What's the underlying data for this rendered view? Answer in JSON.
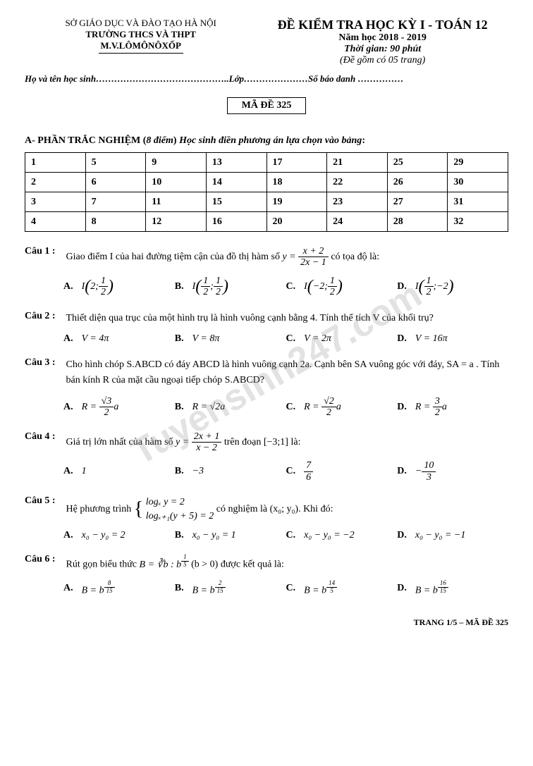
{
  "header": {
    "dept": "SỞ GIÁO DỤC VÀ ĐÀO TẠO HÀ NỘI",
    "school1": "TRƯỜNG THCS VÀ THPT",
    "school2": "M.V.LÔMÔNÔXỐP",
    "examTitle": "ĐỀ KIỂM TRA HỌC KỲ I - TOÁN 12",
    "year": "Năm học 2018 - 2019",
    "time": "Thời gian: 90 phút",
    "pages": "(Đề gồm có 05 trang)"
  },
  "studentLine": "Họ và tên học sinh……………………………………..Lớp…………………Số báo danh ……………",
  "codeLabel": "MÃ ĐỀ 325",
  "sectionA": {
    "prefix": "A-  PHẦN TRẮC NGHIỆM (",
    "italic1": "8 điểm",
    "mid": ")  ",
    "italic2": "Học sinh điền phương án lựa chọn vào bảng",
    "suffix": ":"
  },
  "table": [
    [
      "1",
      "5",
      "9",
      "13",
      "17",
      "21",
      "25",
      "29"
    ],
    [
      "2",
      "6",
      "10",
      "14",
      "18",
      "22",
      "26",
      "30"
    ],
    [
      "3",
      "7",
      "11",
      "15",
      "19",
      "23",
      "27",
      "31"
    ],
    [
      "4",
      "8",
      "12",
      "16",
      "20",
      "24",
      "28",
      "32"
    ]
  ],
  "q1": {
    "label": "Câu 1 :",
    "text": "Giao điểm I của hai đường tiệm cận của đồ thị hàm số  ",
    "text2": "  có tọa độ là:",
    "yNum": "x + 2",
    "yDen": "2x − 1",
    "optA_a": "2",
    "optA_b": "1",
    "optA_c": "2",
    "optB_a": "1",
    "optB_b": "2",
    "optB_c": "1",
    "optB_d": "2",
    "optC_a": "−2",
    "optC_b": "1",
    "optC_c": "2",
    "optD_a": "1",
    "optD_b": "2",
    "optD_c": "−2"
  },
  "q2": {
    "label": "Câu 2 :",
    "text": "Thiết diện qua trục của một hình trụ là hình vuông cạnh bằng 4. Tính thể tích V của khối trụ?",
    "A": "V = 4π",
    "B": "V = 8π",
    "C": "V = 2π",
    "D": "V = 16π"
  },
  "q3": {
    "label": "Câu 3 :",
    "text": "Cho hình chóp S.ABCD có đáy ABCD là hình vuông cạnh 2a. Cạnh bên SA vuông góc với đáy, SA = a . Tính bán kính R của mặt cầu ngoại tiếp chóp S.ABCD?",
    "A_num": "√3",
    "A_den": "2",
    "A_suf": "a",
    "B": "R = √2a",
    "C_num": "√2",
    "C_den": "2",
    "C_suf": "a",
    "D_num": "3",
    "D_den": "2",
    "D_suf": "a"
  },
  "q4": {
    "label": "Câu 4 :",
    "text1": "Giá trị lớn nhất của hàm số  ",
    "yNum": "2x + 1",
    "yDen": "x − 2",
    "text2": " trên đoạn [−3;1] là:",
    "A": "1",
    "B": "−3",
    "C_num": "7",
    "C_den": "6",
    "D_pre": "−",
    "D_num": "10",
    "D_den": "3"
  },
  "q5": {
    "label": "Câu 5 :",
    "text1": "Hệ phương trình ",
    "eq1": "logₓ y = 2",
    "eq2": "logₓ₊₁(y + 5) = 2",
    "text2": " có nghiệm là (x₀; y₀). Khi đó:",
    "A": "x₀ − y₀ = 2",
    "B": "x₀ − y₀ = 1",
    "C": "x₀ − y₀ = −2",
    "D": "x₀ − y₀ = −1"
  },
  "q6": {
    "label": "Câu 6 :",
    "text": "Rút gọn biểu thức  ",
    "text2": "   (b > 0)  được kết quả là:",
    "expr_base": "B = ∛b : b",
    "expr_exp_num": "1",
    "expr_exp_den": "5",
    "A_base": "B = b",
    "A_num": "8",
    "A_den": "15",
    "B_base": "B = b",
    "B_num": "2",
    "B_den": "15",
    "C_base": "B = b",
    "C_num": "14",
    "C_den": "5",
    "D_base": "B = b",
    "D_num": "16",
    "D_den": "15"
  },
  "watermark": "Tuyensinh247.com",
  "footer": "TRANG 1/5 – MÃ ĐỀ 325"
}
